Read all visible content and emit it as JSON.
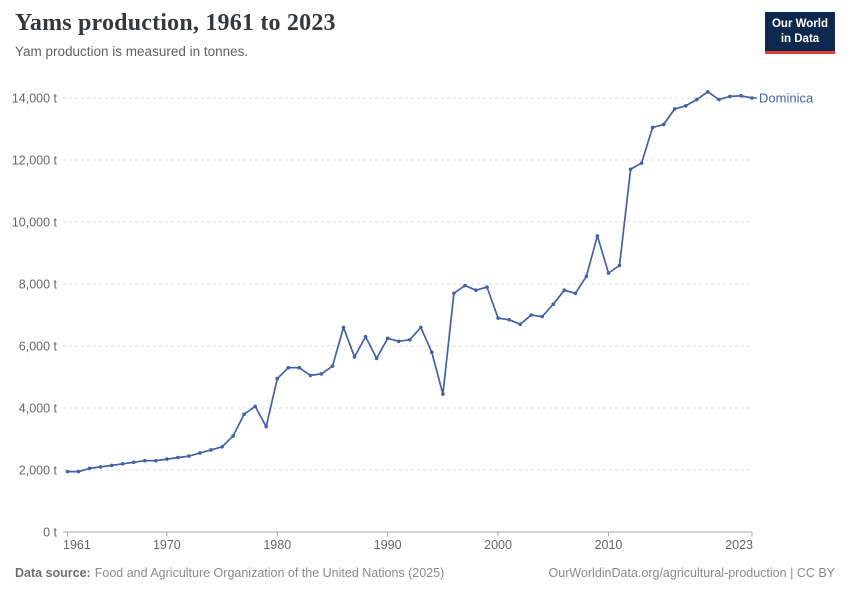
{
  "header": {
    "title": "Yams production, 1961 to 2023",
    "subtitle": "Yam production is measured in tonnes.",
    "logo_line1": "Our World",
    "logo_line2": "in Data"
  },
  "footer": {
    "source_label": "Data source:",
    "source_text": "Food and Agriculture Organization of the United Nations (2025)",
    "link": "OurWorldinData.org/agricultural-production",
    "license": "| CC BY"
  },
  "colors": {
    "line": "#4262a6",
    "logo_bg": "#0d2a4e",
    "logo_accent": "#e23d33",
    "grid": "#dddddd",
    "axis": "#a6a6a6",
    "tick_text": "#666666"
  },
  "chart_data": {
    "type": "line",
    "title": "Yams production, 1961 to 2023",
    "subtitle": "Yam production is measured in tonnes.",
    "unit": "tonnes",
    "grid": "horizontal-dashed",
    "legend_position": "line-end-label",
    "xlim": [
      1961,
      2023
    ],
    "ylim": [
      0,
      14000
    ],
    "x_ticks": [
      1961,
      1970,
      1980,
      1990,
      2000,
      2010,
      2023
    ],
    "y_ticks": [
      0,
      2000,
      4000,
      6000,
      8000,
      10000,
      12000,
      14000
    ],
    "y_tick_labels": [
      "0 t",
      "2,000 t",
      "4,000 t",
      "6,000 t",
      "8,000 t",
      "10,000 t",
      "12,000 t",
      "14,000 t"
    ],
    "series": [
      {
        "name": "Dominica",
        "x": [
          1961,
          1962,
          1963,
          1964,
          1965,
          1966,
          1967,
          1968,
          1969,
          1970,
          1971,
          1972,
          1973,
          1974,
          1975,
          1976,
          1977,
          1978,
          1979,
          1980,
          1981,
          1982,
          1983,
          1984,
          1985,
          1986,
          1987,
          1988,
          1989,
          1990,
          1991,
          1992,
          1993,
          1994,
          1995,
          1996,
          1997,
          1998,
          1999,
          2000,
          2001,
          2002,
          2003,
          2004,
          2005,
          2006,
          2007,
          2008,
          2009,
          2010,
          2011,
          2012,
          2013,
          2014,
          2015,
          2016,
          2017,
          2018,
          2019,
          2020,
          2021,
          2022,
          2023
        ],
        "values": [
          1950,
          1950,
          2050,
          2100,
          2150,
          2200,
          2250,
          2300,
          2300,
          2350,
          2400,
          2450,
          2550,
          2650,
          2750,
          3100,
          3800,
          4050,
          3400,
          4950,
          5300,
          5300,
          5050,
          5100,
          5350,
          6600,
          5650,
          6300,
          5600,
          6250,
          6150,
          6200,
          6600,
          5800,
          4450,
          7700,
          7950,
          7800,
          7900,
          6900,
          6850,
          6700,
          7000,
          6950,
          7350,
          7800,
          7700,
          8250,
          9550,
          8350,
          8600,
          11700,
          11900,
          13050,
          13150,
          13650,
          13750,
          13950,
          14200,
          13950,
          14050,
          14070,
          14000
        ]
      }
    ]
  }
}
